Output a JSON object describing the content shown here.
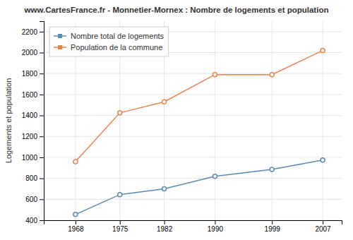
{
  "chart_data": {
    "type": "line",
    "title": "www.CartesFrance.fr - Monnetier-Mornex : Nombre de logements et population",
    "ylabel": "Logements et population",
    "x": [
      1968,
      1975,
      1982,
      1990,
      1999,
      2007
    ],
    "series": [
      {
        "name": "Nombre total de logements",
        "color": "#5b8ab5",
        "marker": "circle",
        "values": [
          455,
          645,
          700,
          820,
          885,
          975
        ]
      },
      {
        "name": "Population de la commune",
        "color": "#e8834a",
        "marker": "circle",
        "values": [
          960,
          1425,
          1530,
          1790,
          1790,
          2020
        ]
      }
    ],
    "xlim": [
      1963,
      2010
    ],
    "xticks": [
      1968,
      1975,
      1982,
      1990,
      1999,
      2007
    ],
    "ylim": [
      400,
      2300
    ],
    "yticks": [
      400,
      600,
      800,
      1000,
      1200,
      1400,
      1600,
      1800,
      2000,
      2200
    ],
    "grid": true,
    "legend": "upper left"
  }
}
